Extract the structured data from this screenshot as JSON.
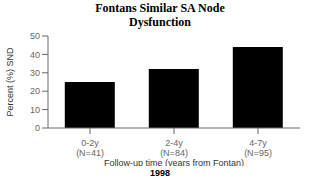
{
  "chart_data": {
    "type": "bar",
    "title": "Fontans Similar SA Node\nDysfunction",
    "categories": [
      "0-2y\n(N=41)",
      "2-4y\n(N=84)",
      "4-7y\n(N=95)"
    ],
    "values": [
      25,
      32,
      44
    ],
    "color": "#000000",
    "xlabel": "Follow-up time (years from Fontan)",
    "ylabel": "Percent (%) SND",
    "ylim": [
      0,
      50
    ],
    "yticks": [
      0,
      10,
      20,
      30,
      40,
      50
    ],
    "grid": false,
    "annotations": [
      "1998"
    ]
  }
}
